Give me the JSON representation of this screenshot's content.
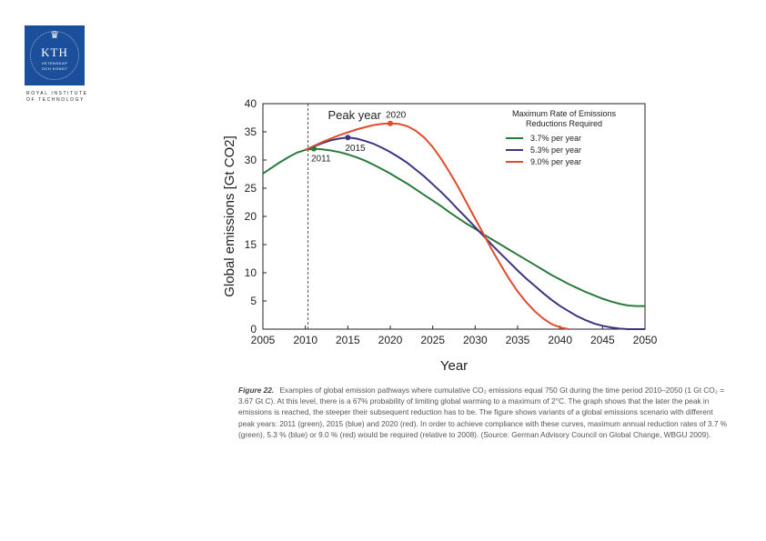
{
  "logo": {
    "crown": "♛",
    "text": "KTH",
    "sub1": "VETENSKAP",
    "sub2": "OCH KONST",
    "inst_line1": "ROYAL INSTITUTE",
    "inst_line2": "OF TECHNOLOGY"
  },
  "chart_data": {
    "type": "line",
    "title": "",
    "xlabel": "Year",
    "ylabel": "Global emissions [Gt CO2]",
    "xlim": [
      2005,
      2050
    ],
    "ylim": [
      0,
      40
    ],
    "xticks": [
      2005,
      2010,
      2015,
      2020,
      2025,
      2030,
      2035,
      2040,
      2045,
      2050
    ],
    "yticks": [
      0,
      5,
      10,
      15,
      20,
      25,
      30,
      35,
      40
    ],
    "grid": false,
    "vline": {
      "x": 2010.3,
      "style": "dashed"
    },
    "peak_label": "Peak year",
    "legend": {
      "title_line1": "Maximum Rate of Emissions",
      "title_line2": "Reductions Required",
      "position": "top-right"
    },
    "series": [
      {
        "name": "3.7% per year",
        "color": "#2a7a3e",
        "peak": {
          "x": 2011,
          "y": 32,
          "label": "2011"
        },
        "points": [
          [
            2005,
            27.6
          ],
          [
            2006,
            28.6
          ],
          [
            2007,
            29.6
          ],
          [
            2008,
            30.5
          ],
          [
            2009,
            31.3
          ],
          [
            2010,
            31.8
          ],
          [
            2011,
            32.0
          ],
          [
            2012,
            31.9
          ],
          [
            2013,
            31.7
          ],
          [
            2014,
            31.4
          ],
          [
            2015,
            31.0
          ],
          [
            2016,
            30.5
          ],
          [
            2017,
            29.9
          ],
          [
            2018,
            29.2
          ],
          [
            2019,
            28.4
          ],
          [
            2020,
            27.6
          ],
          [
            2021,
            26.7
          ],
          [
            2022,
            25.8
          ],
          [
            2023,
            24.8
          ],
          [
            2024,
            23.8
          ],
          [
            2025,
            22.8
          ],
          [
            2026,
            21.8
          ],
          [
            2027,
            20.7
          ],
          [
            2028,
            19.7
          ],
          [
            2029,
            18.7
          ],
          [
            2030,
            17.8
          ],
          [
            2031,
            16.8
          ],
          [
            2032,
            15.9
          ],
          [
            2033,
            15.0
          ],
          [
            2034,
            14.1
          ],
          [
            2035,
            13.2
          ],
          [
            2036,
            12.3
          ],
          [
            2037,
            11.4
          ],
          [
            2038,
            10.5
          ],
          [
            2039,
            9.6
          ],
          [
            2040,
            8.8
          ],
          [
            2041,
            8.0
          ],
          [
            2042,
            7.3
          ],
          [
            2043,
            6.6
          ],
          [
            2044,
            6.0
          ],
          [
            2045,
            5.4
          ],
          [
            2046,
            4.9
          ],
          [
            2047,
            4.5
          ],
          [
            2048,
            4.2
          ],
          [
            2049,
            4.1
          ],
          [
            2050,
            4.1
          ]
        ]
      },
      {
        "name": "5.3% per year",
        "color": "#3b3582",
        "peak": {
          "x": 2015,
          "y": 34,
          "label": "2015"
        },
        "points": [
          [
            2010,
            31.8
          ],
          [
            2011,
            32.4
          ],
          [
            2012,
            33.0
          ],
          [
            2013,
            33.5
          ],
          [
            2014,
            33.8
          ],
          [
            2015,
            34.0
          ],
          [
            2016,
            33.8
          ],
          [
            2017,
            33.4
          ],
          [
            2018,
            32.9
          ],
          [
            2019,
            32.2
          ],
          [
            2020,
            31.4
          ],
          [
            2021,
            30.5
          ],
          [
            2022,
            29.5
          ],
          [
            2023,
            28.3
          ],
          [
            2024,
            27.1
          ],
          [
            2025,
            25.7
          ],
          [
            2026,
            24.3
          ],
          [
            2027,
            22.8
          ],
          [
            2028,
            21.2
          ],
          [
            2029,
            19.7
          ],
          [
            2030,
            18.1
          ],
          [
            2031,
            16.5
          ],
          [
            2032,
            14.9
          ],
          [
            2033,
            13.4
          ],
          [
            2034,
            11.9
          ],
          [
            2035,
            10.4
          ],
          [
            2036,
            9.0
          ],
          [
            2037,
            7.7
          ],
          [
            2038,
            6.4
          ],
          [
            2039,
            5.2
          ],
          [
            2040,
            4.1
          ],
          [
            2041,
            3.2
          ],
          [
            2042,
            2.3
          ],
          [
            2043,
            1.6
          ],
          [
            2044,
            1.0
          ],
          [
            2045,
            0.6
          ],
          [
            2046,
            0.3
          ],
          [
            2047,
            0.1
          ],
          [
            2048,
            0.0
          ],
          [
            2049,
            0.0
          ],
          [
            2050,
            0.0
          ]
        ]
      },
      {
        "name": "9.0% per year",
        "color": "#e14a2b",
        "peak": {
          "x": 2020,
          "y": 36.5,
          "label": "2020"
        },
        "points": [
          [
            2010,
            31.8
          ],
          [
            2011,
            32.5
          ],
          [
            2012,
            33.2
          ],
          [
            2013,
            33.8
          ],
          [
            2014,
            34.4
          ],
          [
            2015,
            34.9
          ],
          [
            2016,
            35.4
          ],
          [
            2017,
            35.8
          ],
          [
            2018,
            36.2
          ],
          [
            2019,
            36.4
          ],
          [
            2020,
            36.5
          ],
          [
            2021,
            36.4
          ],
          [
            2022,
            36.0
          ],
          [
            2023,
            35.2
          ],
          [
            2024,
            34.0
          ],
          [
            2025,
            32.3
          ],
          [
            2026,
            30.2
          ],
          [
            2027,
            27.8
          ],
          [
            2028,
            25.2
          ],
          [
            2029,
            22.4
          ],
          [
            2030,
            19.6
          ],
          [
            2031,
            16.8
          ],
          [
            2032,
            14.0
          ],
          [
            2033,
            11.4
          ],
          [
            2034,
            8.9
          ],
          [
            2035,
            6.7
          ],
          [
            2036,
            4.8
          ],
          [
            2037,
            3.2
          ],
          [
            2038,
            1.9
          ],
          [
            2039,
            0.9
          ],
          [
            2040,
            0.3
          ],
          [
            2041,
            0.0
          ]
        ]
      }
    ]
  },
  "caption": {
    "figure_label": "Figure 22.",
    "text": "Examples of global emission pathways where cumulative CO₂ emissions equal 750 Gt during the time period 2010–2050 (1 Gt CO₂ = 3.67 Gt C). At this level, there is a 67% probability of limiting global warming to a maximum of 2°C. The graph shows that the later the peak in emissions is reached, the steeper their subsequent reduction has to be. The figure shows variants of a global emissions scenario with different peak years: 2011 (green), 2015 (blue) and 2020 (red). In order to achieve compliance with these curves, maximum annual reduction rates of 3.7 % (green), 5.3 % (blue) or 9.0 % (red) would be required (relative to 2008). (Source: German Advisory Council on Global Change, WBGU 2009)."
  }
}
